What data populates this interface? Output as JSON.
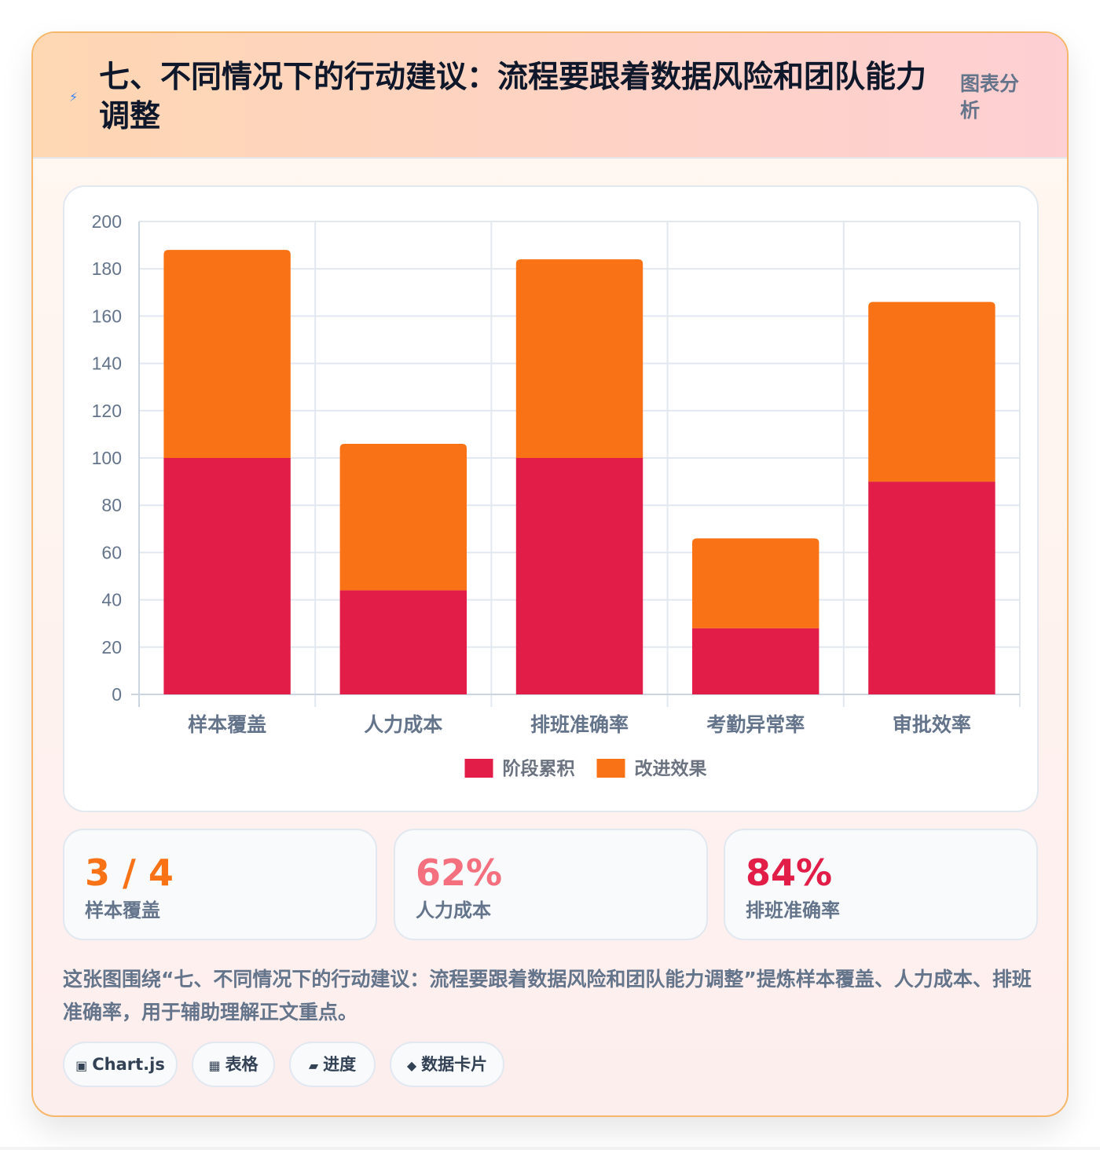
{
  "header": {
    "icon": "lightning-icon",
    "title": "七、不同情况下的行动建议：流程要跟着数据风险和团队能力调整",
    "tag": "图表分析"
  },
  "chart_data": {
    "type": "bar",
    "stacked": true,
    "categories": [
      "样本覆盖",
      "人力成本",
      "排班准确率",
      "考勤异常率",
      "审批效率"
    ],
    "series": [
      {
        "name": "阶段累积",
        "color": "#e11d48",
        "values": [
          100,
          44,
          100,
          28,
          90
        ]
      },
      {
        "name": "改进效果",
        "color": "#f97316",
        "values": [
          88,
          62,
          84,
          38,
          76
        ]
      }
    ],
    "ylim": [
      0,
      200
    ],
    "yticks": [
      0,
      20,
      40,
      60,
      80,
      100,
      120,
      140,
      160,
      180,
      200
    ],
    "grid": true,
    "legend": "bottom"
  },
  "stats": [
    {
      "value": "3 / 4",
      "label": "样本覆盖",
      "color": "#f97316"
    },
    {
      "value": "62%",
      "label": "人力成本",
      "color": "#f4707e"
    },
    {
      "value": "84%",
      "label": "排班准确率",
      "color": "#e11d48"
    }
  ],
  "description": "这张图围绕“七、不同情况下的行动建议：流程要跟着数据风险和团队能力调整”提炼样本覆盖、人力成本、排班准确率，用于辅助理解正文重点。",
  "tags": [
    {
      "icon": "chart-icon",
      "glyph": "▣",
      "label": "Chart.js"
    },
    {
      "icon": "table-icon",
      "glyph": "▦",
      "label": "表格"
    },
    {
      "icon": "progress-icon",
      "glyph": "▰",
      "label": "进度"
    },
    {
      "icon": "diamond-icon",
      "glyph": "◆",
      "label": "数据卡片"
    }
  ]
}
